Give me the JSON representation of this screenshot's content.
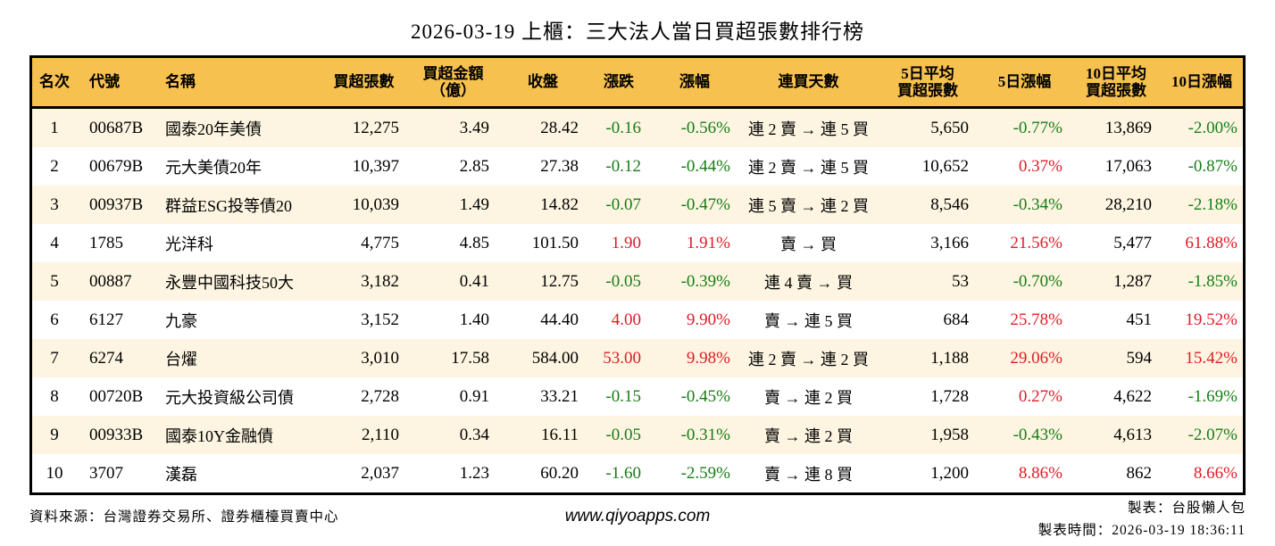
{
  "title": "2026-03-19 上櫃：三大法人當日買超張數排行榜",
  "colors": {
    "header_bg": "#F6C14F",
    "stripe_bg": "#FDF5E1",
    "row_bg": "#FFFFFF",
    "up_red": "#DD1C28",
    "down_green": "#177C17",
    "border": "#000000"
  },
  "table": {
    "columns": [
      {
        "key": "rank",
        "label": "名次",
        "align": "center",
        "header_align": "center"
      },
      {
        "key": "code",
        "label": "代號",
        "align": "left",
        "header_align": "left"
      },
      {
        "key": "name",
        "label": "名稱",
        "align": "left",
        "header_align": "left"
      },
      {
        "key": "net_buy",
        "label": "買超張數",
        "align": "right",
        "header_align": "center"
      },
      {
        "key": "amount",
        "label": "買超金額",
        "label2": "（億）",
        "align": "right",
        "header_align": "center"
      },
      {
        "key": "close",
        "label": "收盤",
        "align": "right",
        "header_align": "center"
      },
      {
        "key": "chg",
        "label": "漲跌",
        "align": "right",
        "header_align": "center",
        "colored": true
      },
      {
        "key": "chg_pct",
        "label": "漲幅",
        "align": "right",
        "header_align": "center",
        "colored": true
      },
      {
        "key": "streak",
        "label": "連買天數",
        "align": "center",
        "header_align": "center"
      },
      {
        "key": "avg5",
        "label": "5日平均",
        "label2": "買超張數",
        "align": "right",
        "header_align": "center"
      },
      {
        "key": "pct5",
        "label": "5日漲幅",
        "align": "right",
        "header_align": "center",
        "colored": true
      },
      {
        "key": "avg10",
        "label": "10日平均",
        "label2": "買超張數",
        "align": "right",
        "header_align": "center"
      },
      {
        "key": "pct10",
        "label": "10日漲幅",
        "align": "right",
        "header_align": "center",
        "colored": true
      }
    ],
    "rows": [
      {
        "rank": "1",
        "code": "00687B",
        "name": "國泰20年美債",
        "net_buy": "12,275",
        "amount": "3.49",
        "close": "28.42",
        "chg": "-0.16",
        "chg_pct": "-0.56%",
        "streak": "連 2 賣 → 連 5 買",
        "avg5": "5,650",
        "pct5": "-0.77%",
        "avg10": "13,869",
        "pct10": "-2.00%"
      },
      {
        "rank": "2",
        "code": "00679B",
        "name": "元大美債20年",
        "net_buy": "10,397",
        "amount": "2.85",
        "close": "27.38",
        "chg": "-0.12",
        "chg_pct": "-0.44%",
        "streak": "連 2 賣 → 連 5 買",
        "avg5": "10,652",
        "pct5": "0.37%",
        "avg10": "17,063",
        "pct10": "-0.87%"
      },
      {
        "rank": "3",
        "code": "00937B",
        "name": "群益ESG投等債20",
        "net_buy": "10,039",
        "amount": "1.49",
        "close": "14.82",
        "chg": "-0.07",
        "chg_pct": "-0.47%",
        "streak": "連 5 賣 → 連 2 買",
        "avg5": "8,546",
        "pct5": "-0.34%",
        "avg10": "28,210",
        "pct10": "-2.18%"
      },
      {
        "rank": "4",
        "code": "1785",
        "name": "光洋科",
        "net_buy": "4,775",
        "amount": "4.85",
        "close": "101.50",
        "chg": "1.90",
        "chg_pct": "1.91%",
        "streak": "賣 → 買",
        "avg5": "3,166",
        "pct5": "21.56%",
        "avg10": "5,477",
        "pct10": "61.88%"
      },
      {
        "rank": "5",
        "code": "00887",
        "name": "永豐中國科技50大",
        "net_buy": "3,182",
        "amount": "0.41",
        "close": "12.75",
        "chg": "-0.05",
        "chg_pct": "-0.39%",
        "streak": "連 4 賣 → 買",
        "avg5": "53",
        "pct5": "-0.70%",
        "avg10": "1,287",
        "pct10": "-1.85%"
      },
      {
        "rank": "6",
        "code": "6127",
        "name": "九豪",
        "net_buy": "3,152",
        "amount": "1.40",
        "close": "44.40",
        "chg": "4.00",
        "chg_pct": "9.90%",
        "streak": "賣 → 連 5 買",
        "avg5": "684",
        "pct5": "25.78%",
        "avg10": "451",
        "pct10": "19.52%"
      },
      {
        "rank": "7",
        "code": "6274",
        "name": "台燿",
        "net_buy": "3,010",
        "amount": "17.58",
        "close": "584.00",
        "chg": "53.00",
        "chg_pct": "9.98%",
        "streak": "連 2 賣 → 連 2 買",
        "avg5": "1,188",
        "pct5": "29.06%",
        "avg10": "594",
        "pct10": "15.42%"
      },
      {
        "rank": "8",
        "code": "00720B",
        "name": "元大投資級公司債",
        "net_buy": "2,728",
        "amount": "0.91",
        "close": "33.21",
        "chg": "-0.15",
        "chg_pct": "-0.45%",
        "streak": "賣 → 連 2 買",
        "avg5": "1,728",
        "pct5": "0.27%",
        "avg10": "4,622",
        "pct10": "-1.69%"
      },
      {
        "rank": "9",
        "code": "00933B",
        "name": "國泰10Y金融債",
        "net_buy": "2,110",
        "amount": "0.34",
        "close": "16.11",
        "chg": "-0.05",
        "chg_pct": "-0.31%",
        "streak": "賣 → 連 2 買",
        "avg5": "1,958",
        "pct5": "-0.43%",
        "avg10": "4,613",
        "pct10": "-2.07%"
      },
      {
        "rank": "10",
        "code": "3707",
        "name": "漢磊",
        "net_buy": "2,037",
        "amount": "1.23",
        "close": "60.20",
        "chg": "-1.60",
        "chg_pct": "-2.59%",
        "streak": "賣 → 連 8 買",
        "avg5": "1,200",
        "pct5": "8.86%",
        "avg10": "862",
        "pct10": "8.66%"
      }
    ]
  },
  "footer": {
    "source": "資料來源：台灣證券交易所、證券櫃檯買賣中心",
    "website": "www.qiyoapps.com",
    "maker": "製表：台股懶人包",
    "timestamp": "製表時間：2026-03-19 18:36:11"
  }
}
